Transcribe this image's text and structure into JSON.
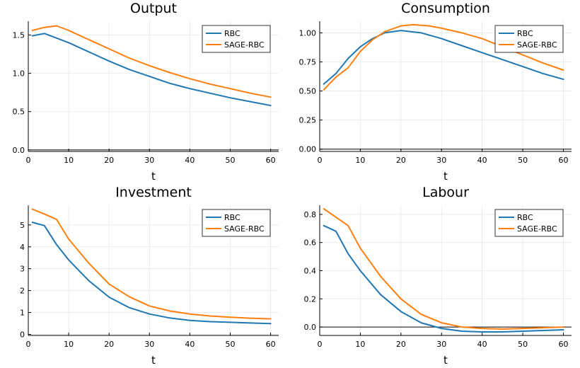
{
  "chart_data": [
    {
      "type": "line",
      "title": "Output",
      "xlabel": "t",
      "ylabel": "",
      "xlim": [
        0,
        62
      ],
      "ylim": [
        -0.02,
        1.68
      ],
      "xticks": [
        0,
        10,
        20,
        30,
        40,
        50,
        60
      ],
      "yticks": [
        0.0,
        0.5,
        1.0,
        1.5
      ],
      "ytick_labels": [
        "0.0",
        "0.5",
        "1.0",
        "1.5"
      ],
      "grid": true,
      "zero_line": true,
      "legend_position": "top-right",
      "series": [
        {
          "name": "RBC",
          "color": "#1f77b4",
          "x": [
            1,
            4,
            7,
            10,
            15,
            20,
            25,
            30,
            35,
            40,
            45,
            50,
            55,
            60
          ],
          "y": [
            1.49,
            1.52,
            1.46,
            1.4,
            1.28,
            1.16,
            1.05,
            0.96,
            0.87,
            0.8,
            0.74,
            0.68,
            0.63,
            0.58
          ]
        },
        {
          "name": "SAGE-RBC",
          "color": "#ff7f0e",
          "x": [
            1,
            4,
            7,
            10,
            15,
            20,
            25,
            30,
            35,
            40,
            45,
            50,
            55,
            60
          ],
          "y": [
            1.56,
            1.6,
            1.62,
            1.56,
            1.44,
            1.32,
            1.2,
            1.1,
            1.01,
            0.93,
            0.86,
            0.8,
            0.74,
            0.69
          ]
        }
      ]
    },
    {
      "type": "line",
      "title": "Consumption",
      "xlabel": "t",
      "ylabel": "",
      "xlim": [
        0,
        62
      ],
      "ylim": [
        -0.02,
        1.1
      ],
      "xticks": [
        0,
        10,
        20,
        30,
        40,
        50,
        60
      ],
      "yticks": [
        0.0,
        0.25,
        0.5,
        0.75,
        1.0
      ],
      "ytick_labels": [
        "0.00",
        "0.25",
        "0.50",
        "0.75",
        "1.00"
      ],
      "grid": true,
      "zero_line": true,
      "legend_position": "top-right",
      "series": [
        {
          "name": "RBC",
          "color": "#1f77b4",
          "x": [
            1,
            4,
            7,
            10,
            13,
            16,
            20,
            25,
            30,
            35,
            40,
            45,
            50,
            55,
            60
          ],
          "y": [
            0.56,
            0.65,
            0.78,
            0.88,
            0.95,
            1.0,
            1.02,
            1.0,
            0.95,
            0.89,
            0.83,
            0.77,
            0.71,
            0.65,
            0.6
          ]
        },
        {
          "name": "SAGE-RBC",
          "color": "#ff7f0e",
          "x": [
            1,
            4,
            7,
            10,
            13,
            16,
            20,
            23,
            27,
            30,
            35,
            40,
            45,
            50,
            55,
            60
          ],
          "y": [
            0.51,
            0.62,
            0.7,
            0.84,
            0.94,
            1.01,
            1.06,
            1.07,
            1.06,
            1.04,
            1.0,
            0.95,
            0.88,
            0.81,
            0.74,
            0.68
          ]
        }
      ]
    },
    {
      "type": "line",
      "title": "Investment",
      "xlabel": "t",
      "ylabel": "",
      "xlim": [
        0,
        62
      ],
      "ylim": [
        -0.05,
        5.9
      ],
      "xticks": [
        0,
        10,
        20,
        30,
        40,
        50,
        60
      ],
      "yticks": [
        0,
        1,
        2,
        3,
        4,
        5
      ],
      "ytick_labels": [
        "0",
        "1",
        "2",
        "3",
        "4",
        "5"
      ],
      "grid": true,
      "zero_line": false,
      "legend_position": "top-right",
      "series": [
        {
          "name": "RBC",
          "color": "#1f77b4",
          "x": [
            1,
            4,
            7,
            10,
            15,
            20,
            25,
            30,
            35,
            40,
            45,
            50,
            55,
            60
          ],
          "y": [
            5.12,
            4.97,
            4.1,
            3.4,
            2.45,
            1.7,
            1.22,
            0.93,
            0.75,
            0.64,
            0.58,
            0.55,
            0.52,
            0.49
          ]
        },
        {
          "name": "SAGE-RBC",
          "color": "#ff7f0e",
          "x": [
            1,
            4,
            7,
            10,
            15,
            20,
            25,
            30,
            35,
            40,
            45,
            50,
            55,
            60
          ],
          "y": [
            5.72,
            5.5,
            5.25,
            4.35,
            3.25,
            2.3,
            1.72,
            1.3,
            1.07,
            0.93,
            0.84,
            0.78,
            0.74,
            0.71
          ]
        }
      ]
    },
    {
      "type": "line",
      "title": "Labour",
      "xlabel": "t",
      "ylabel": "",
      "xlim": [
        0,
        62
      ],
      "ylim": [
        -0.06,
        0.865
      ],
      "xticks": [
        0,
        10,
        20,
        30,
        40,
        50,
        60
      ],
      "yticks": [
        0.0,
        0.2,
        0.4,
        0.6,
        0.8
      ],
      "ytick_labels": [
        "0.0",
        "0.2",
        "0.4",
        "0.6",
        "0.8"
      ],
      "grid": true,
      "zero_line": true,
      "legend_position": "top-right",
      "series": [
        {
          "name": "RBC",
          "color": "#1f77b4",
          "x": [
            1,
            4,
            7,
            10,
            15,
            20,
            25,
            30,
            35,
            40,
            45,
            50,
            55,
            60
          ],
          "y": [
            0.72,
            0.68,
            0.52,
            0.4,
            0.23,
            0.11,
            0.03,
            -0.01,
            -0.03,
            -0.035,
            -0.035,
            -0.03,
            -0.025,
            -0.02
          ]
        },
        {
          "name": "SAGE-RBC",
          "color": "#ff7f0e",
          "x": [
            1,
            4,
            7,
            10,
            15,
            20,
            25,
            30,
            35,
            40,
            45,
            50,
            55,
            60
          ],
          "y": [
            0.84,
            0.78,
            0.72,
            0.56,
            0.36,
            0.2,
            0.09,
            0.03,
            0.0,
            -0.01,
            -0.015,
            -0.01,
            -0.005,
            0.0
          ]
        }
      ]
    }
  ]
}
